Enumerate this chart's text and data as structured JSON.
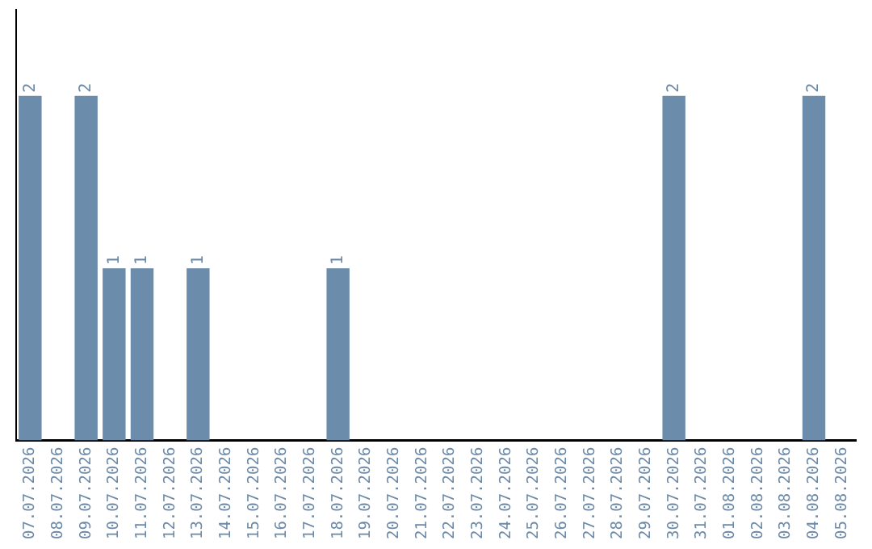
{
  "chart_data": {
    "type": "bar",
    "categories": [
      "07.07.2026",
      "08.07.2026",
      "09.07.2026",
      "10.07.2026",
      "11.07.2026",
      "12.07.2026",
      "13.07.2026",
      "14.07.2026",
      "15.07.2026",
      "16.07.2026",
      "17.07.2026",
      "18.07.2026",
      "19.07.2026",
      "20.07.2026",
      "21.07.2026",
      "22.07.2026",
      "23.07.2026",
      "24.07.2026",
      "25.07.2026",
      "26.07.2026",
      "27.07.2026",
      "28.07.2026",
      "29.07.2026",
      "30.07.2026",
      "31.07.2026",
      "01.08.2026",
      "02.08.2026",
      "03.08.2026",
      "04.08.2026",
      "05.08.2026"
    ],
    "values": [
      2,
      0,
      2,
      1,
      1,
      0,
      1,
      0,
      0,
      0,
      0,
      1,
      0,
      0,
      0,
      0,
      0,
      0,
      0,
      0,
      0,
      0,
      0,
      2,
      0,
      0,
      0,
      0,
      2,
      0
    ],
    "value_labels": [
      "2",
      null,
      "2",
      "1",
      "1",
      null,
      "1",
      null,
      null,
      null,
      null,
      "1",
      null,
      null,
      null,
      null,
      null,
      null,
      null,
      null,
      null,
      null,
      null,
      "2",
      null,
      null,
      null,
      null,
      "2",
      null
    ],
    "color": "#6b8cab",
    "grid": false,
    "legend": false,
    "tick_labels": "x"
  }
}
